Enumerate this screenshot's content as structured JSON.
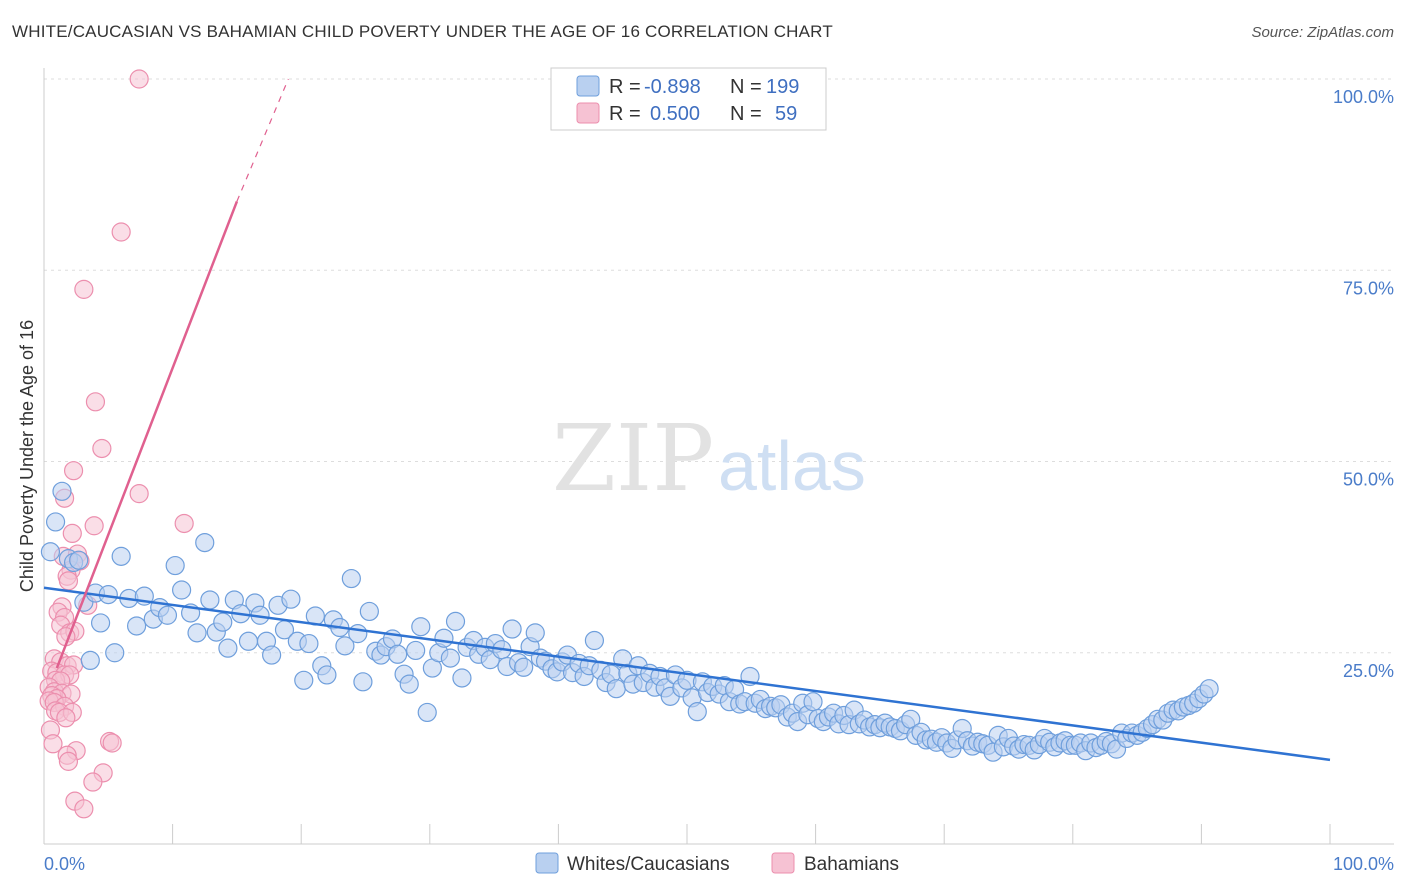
{
  "title": "WHITE/CAUCASIAN VS BAHAMIAN CHILD POVERTY UNDER THE AGE OF 16 CORRELATION CHART",
  "source": "Source: ZipAtlas.com",
  "watermark": {
    "zip": "ZIP",
    "atlas": "atlas"
  },
  "colors": {
    "blue_fill": "#b9d0f0",
    "blue_stroke": "#6f9fdc",
    "blue_line": "#2f73d2",
    "pink_fill": "#f6c2d3",
    "pink_stroke": "#ec8fae",
    "pink_line": "#e0608f",
    "axis_label": "#4a7cc9",
    "grid": "#dddddd"
  },
  "legend": {
    "r_label": "R =",
    "n_label": "N =",
    "rows": [
      {
        "series": "blue",
        "r": "-0.898",
        "n": "199"
      },
      {
        "series": "pink",
        "r": "0.500",
        "n": "59"
      }
    ]
  },
  "bottom_legend": [
    "Whites/Caucasians",
    "Bahamians"
  ],
  "chart_data": {
    "type": "scatter",
    "title": "WHITE/CAUCASIAN VS BAHAMIAN CHILD POVERTY UNDER THE AGE OF 16 CORRELATION CHART",
    "xlabel": "",
    "ylabel": "Child Poverty Under the Age of 16",
    "xlim": [
      0,
      100
    ],
    "ylim": [
      0,
      100
    ],
    "x_tick_labels": [
      {
        "value": 0,
        "label": "0.0%"
      },
      {
        "value": 100,
        "label": "100.0%"
      }
    ],
    "y_tick_labels": [
      {
        "value": 25,
        "label": "25.0%"
      },
      {
        "value": 50,
        "label": "50.0%"
      },
      {
        "value": 75,
        "label": "75.0%"
      },
      {
        "value": 100,
        "label": "100.0%"
      }
    ],
    "grid": true,
    "legend_position": "top-center",
    "series": [
      {
        "name": "Whites/Caucasians",
        "color": "blue",
        "r": -0.898,
        "n": 199,
        "trend": {
          "x": [
            0,
            100
          ],
          "y": [
            33.5,
            11.0
          ],
          "dashed_after": null
        },
        "points": [
          [
            0.5,
            38.2
          ],
          [
            0.9,
            42.1
          ],
          [
            1.4,
            46.1
          ],
          [
            1.9,
            37.3
          ],
          [
            2.3,
            36.8
          ],
          [
            2.7,
            37.1
          ],
          [
            3.1,
            31.6
          ],
          [
            3.6,
            24.0
          ],
          [
            4.0,
            32.8
          ],
          [
            4.4,
            28.9
          ],
          [
            5.0,
            32.6
          ],
          [
            5.5,
            25.0
          ],
          [
            6.0,
            37.6
          ],
          [
            6.6,
            32.1
          ],
          [
            7.2,
            28.5
          ],
          [
            7.8,
            32.4
          ],
          [
            8.5,
            29.4
          ],
          [
            9.0,
            30.9
          ],
          [
            9.6,
            29.9
          ],
          [
            10.2,
            36.4
          ],
          [
            10.7,
            33.2
          ],
          [
            11.4,
            30.2
          ],
          [
            11.9,
            27.6
          ],
          [
            12.5,
            39.4
          ],
          [
            12.9,
            31.9
          ],
          [
            13.4,
            27.7
          ],
          [
            13.9,
            29.0
          ],
          [
            14.3,
            25.6
          ],
          [
            14.8,
            31.9
          ],
          [
            15.3,
            30.1
          ],
          [
            15.9,
            26.5
          ],
          [
            16.4,
            31.5
          ],
          [
            16.8,
            29.9
          ],
          [
            17.3,
            26.5
          ],
          [
            17.7,
            24.7
          ],
          [
            18.2,
            31.2
          ],
          [
            18.7,
            28.0
          ],
          [
            19.2,
            32.0
          ],
          [
            19.7,
            26.5
          ],
          [
            20.2,
            21.4
          ],
          [
            20.6,
            26.2
          ],
          [
            21.1,
            29.8
          ],
          [
            21.6,
            23.3
          ],
          [
            22.0,
            22.1
          ],
          [
            22.5,
            29.3
          ],
          [
            23.0,
            28.3
          ],
          [
            23.4,
            25.9
          ],
          [
            23.9,
            34.7
          ],
          [
            24.4,
            27.5
          ],
          [
            24.8,
            21.2
          ],
          [
            25.3,
            30.4
          ],
          [
            25.8,
            25.2
          ],
          [
            26.2,
            24.7
          ],
          [
            26.6,
            25.8
          ],
          [
            27.1,
            26.8
          ],
          [
            27.5,
            24.8
          ],
          [
            28.0,
            22.2
          ],
          [
            28.4,
            20.9
          ],
          [
            28.9,
            25.3
          ],
          [
            29.3,
            28.4
          ],
          [
            29.8,
            17.2
          ],
          [
            30.2,
            23.0
          ],
          [
            30.7,
            25.0
          ],
          [
            31.1,
            26.9
          ],
          [
            31.6,
            24.3
          ],
          [
            32.0,
            29.1
          ],
          [
            32.5,
            21.7
          ],
          [
            32.9,
            25.7
          ],
          [
            33.4,
            26.6
          ],
          [
            33.8,
            24.8
          ],
          [
            34.3,
            25.7
          ],
          [
            34.7,
            24.1
          ],
          [
            35.1,
            26.2
          ],
          [
            35.6,
            25.4
          ],
          [
            36.0,
            23.2
          ],
          [
            36.4,
            28.1
          ],
          [
            36.9,
            23.7
          ],
          [
            37.3,
            23.1
          ],
          [
            37.8,
            25.8
          ],
          [
            38.2,
            27.6
          ],
          [
            38.6,
            24.3
          ],
          [
            39.0,
            23.9
          ],
          [
            39.5,
            22.9
          ],
          [
            39.9,
            22.5
          ],
          [
            40.3,
            23.8
          ],
          [
            40.7,
            24.7
          ],
          [
            41.1,
            22.4
          ],
          [
            41.6,
            23.6
          ],
          [
            42.0,
            21.9
          ],
          [
            42.4,
            23.3
          ],
          [
            42.8,
            26.6
          ],
          [
            43.3,
            22.7
          ],
          [
            43.7,
            21.1
          ],
          [
            44.1,
            22.2
          ],
          [
            44.5,
            20.3
          ],
          [
            45.0,
            24.2
          ],
          [
            45.4,
            22.3
          ],
          [
            45.8,
            20.9
          ],
          [
            46.2,
            23.3
          ],
          [
            46.6,
            21.1
          ],
          [
            47.1,
            22.3
          ],
          [
            47.5,
            20.5
          ],
          [
            47.9,
            21.9
          ],
          [
            48.3,
            20.4
          ],
          [
            48.7,
            19.3
          ],
          [
            49.1,
            22.1
          ],
          [
            49.6,
            20.4
          ],
          [
            50.0,
            21.4
          ],
          [
            50.4,
            19.1
          ],
          [
            50.8,
            17.3
          ],
          [
            51.2,
            21.2
          ],
          [
            51.6,
            19.8
          ],
          [
            52.0,
            20.6
          ],
          [
            52.5,
            19.6
          ],
          [
            52.9,
            20.7
          ],
          [
            53.3,
            18.6
          ],
          [
            53.7,
            20.2
          ],
          [
            54.1,
            18.3
          ],
          [
            54.5,
            18.6
          ],
          [
            54.9,
            21.9
          ],
          [
            55.3,
            18.4
          ],
          [
            55.7,
            18.9
          ],
          [
            56.1,
            17.7
          ],
          [
            56.5,
            18.0
          ],
          [
            56.9,
            17.8
          ],
          [
            57.3,
            18.2
          ],
          [
            57.8,
            16.6
          ],
          [
            58.2,
            17.1
          ],
          [
            58.6,
            16.0
          ],
          [
            59.0,
            18.4
          ],
          [
            59.4,
            16.9
          ],
          [
            59.8,
            18.6
          ],
          [
            60.2,
            16.4
          ],
          [
            60.6,
            16.0
          ],
          [
            61.0,
            16.6
          ],
          [
            61.4,
            17.1
          ],
          [
            61.8,
            15.7
          ],
          [
            62.2,
            16.8
          ],
          [
            62.6,
            15.6
          ],
          [
            63.0,
            17.5
          ],
          [
            63.4,
            15.7
          ],
          [
            63.8,
            16.2
          ],
          [
            64.2,
            15.3
          ],
          [
            64.6,
            15.6
          ],
          [
            65.0,
            15.2
          ],
          [
            65.4,
            15.8
          ],
          [
            65.8,
            15.3
          ],
          [
            66.2,
            15.1
          ],
          [
            66.6,
            14.8
          ],
          [
            67.0,
            15.6
          ],
          [
            67.4,
            16.3
          ],
          [
            67.8,
            14.2
          ],
          [
            68.2,
            14.6
          ],
          [
            68.6,
            13.6
          ],
          [
            69.0,
            13.7
          ],
          [
            69.4,
            13.3
          ],
          [
            69.8,
            13.9
          ],
          [
            70.2,
            13.2
          ],
          [
            70.6,
            12.5
          ],
          [
            71.0,
            13.6
          ],
          [
            71.4,
            15.1
          ],
          [
            71.8,
            13.5
          ],
          [
            72.2,
            12.8
          ],
          [
            72.6,
            13.3
          ],
          [
            73.0,
            13.1
          ],
          [
            73.4,
            12.9
          ],
          [
            73.8,
            12.0
          ],
          [
            74.2,
            14.2
          ],
          [
            74.6,
            12.7
          ],
          [
            75.0,
            13.8
          ],
          [
            75.4,
            12.8
          ],
          [
            75.8,
            12.4
          ],
          [
            76.2,
            13.0
          ],
          [
            76.6,
            12.9
          ],
          [
            77.0,
            12.3
          ],
          [
            77.4,
            13.0
          ],
          [
            77.8,
            13.8
          ],
          [
            78.2,
            13.3
          ],
          [
            78.6,
            12.7
          ],
          [
            79.0,
            13.2
          ],
          [
            79.4,
            13.5
          ],
          [
            79.8,
            12.9
          ],
          [
            80.2,
            12.9
          ],
          [
            80.6,
            13.2
          ],
          [
            81.0,
            12.2
          ],
          [
            81.4,
            13.2
          ],
          [
            81.8,
            12.6
          ],
          [
            82.2,
            12.9
          ],
          [
            82.6,
            13.4
          ],
          [
            83.0,
            13.1
          ],
          [
            83.4,
            12.4
          ],
          [
            83.8,
            14.5
          ],
          [
            84.2,
            13.8
          ],
          [
            84.6,
            14.5
          ],
          [
            85.0,
            14.2
          ],
          [
            85.4,
            14.6
          ],
          [
            85.8,
            15.1
          ],
          [
            86.2,
            15.6
          ],
          [
            86.6,
            16.3
          ],
          [
            87.0,
            16.2
          ],
          [
            87.4,
            17.1
          ],
          [
            87.8,
            17.5
          ],
          [
            88.2,
            17.4
          ],
          [
            88.6,
            17.9
          ],
          [
            89.0,
            18.1
          ],
          [
            89.4,
            18.4
          ],
          [
            89.8,
            19.0
          ],
          [
            90.2,
            19.6
          ],
          [
            90.6,
            20.3
          ]
        ]
      },
      {
        "name": "Bahamians",
        "color": "pink",
        "r": 0.5,
        "n": 59,
        "trend": {
          "x": [
            1.0,
            15.0,
            19.0
          ],
          "y": [
            23.0,
            84.0,
            100.0
          ],
          "dashed_after": 15.0
        },
        "points": [
          [
            7.4,
            100.0
          ],
          [
            6.0,
            80.0
          ],
          [
            3.1,
            72.5
          ],
          [
            4.0,
            57.8
          ],
          [
            4.5,
            51.7
          ],
          [
            2.3,
            48.8
          ],
          [
            7.4,
            45.8
          ],
          [
            1.6,
            45.2
          ],
          [
            10.9,
            41.9
          ],
          [
            3.9,
            41.6
          ],
          [
            2.2,
            40.6
          ],
          [
            1.5,
            37.6
          ],
          [
            2.6,
            37.9
          ],
          [
            2.8,
            37.0
          ],
          [
            2.1,
            35.8
          ],
          [
            1.8,
            35.0
          ],
          [
            1.9,
            34.4
          ],
          [
            3.4,
            31.2
          ],
          [
            1.4,
            31.0
          ],
          [
            1.1,
            30.3
          ],
          [
            1.6,
            29.6
          ],
          [
            1.3,
            28.6
          ],
          [
            2.0,
            27.6
          ],
          [
            2.4,
            27.8
          ],
          [
            1.7,
            27.1
          ],
          [
            0.8,
            24.2
          ],
          [
            1.3,
            23.8
          ],
          [
            1.8,
            23.3
          ],
          [
            2.3,
            23.4
          ],
          [
            0.6,
            22.6
          ],
          [
            1.0,
            22.4
          ],
          [
            1.6,
            22.1
          ],
          [
            2.0,
            22.1
          ],
          [
            0.9,
            21.4
          ],
          [
            1.3,
            21.3
          ],
          [
            0.4,
            20.5
          ],
          [
            0.8,
            19.9
          ],
          [
            1.4,
            19.7
          ],
          [
            2.1,
            19.6
          ],
          [
            0.6,
            19.4
          ],
          [
            1.0,
            19.0
          ],
          [
            0.4,
            18.7
          ],
          [
            0.8,
            18.5
          ],
          [
            1.6,
            18.0
          ],
          [
            0.9,
            17.4
          ],
          [
            1.2,
            17.2
          ],
          [
            2.2,
            17.2
          ],
          [
            1.7,
            16.5
          ],
          [
            0.5,
            14.9
          ],
          [
            0.7,
            13.1
          ],
          [
            5.1,
            13.4
          ],
          [
            5.3,
            13.2
          ],
          [
            2.5,
            12.2
          ],
          [
            1.8,
            11.6
          ],
          [
            4.6,
            9.3
          ],
          [
            3.8,
            8.1
          ],
          [
            2.4,
            5.6
          ],
          [
            3.1,
            4.6
          ],
          [
            1.9,
            10.8
          ]
        ]
      }
    ]
  }
}
